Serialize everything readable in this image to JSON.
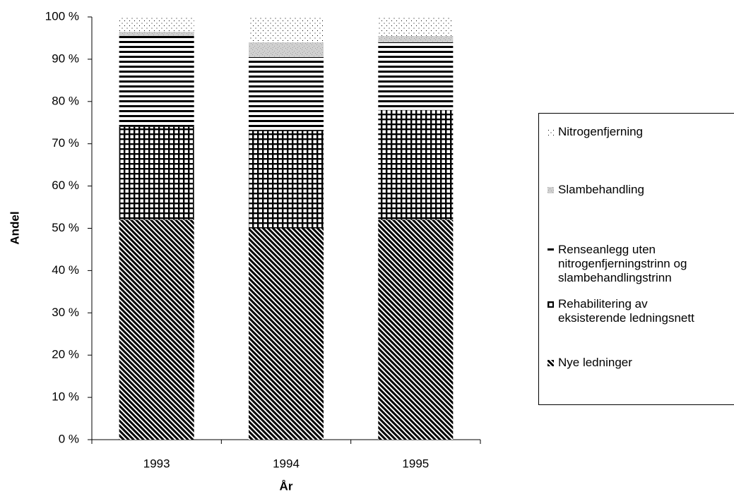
{
  "chart_data": {
    "type": "stacked-bar",
    "x_label": "År",
    "y_label": "Andel",
    "categories": [
      "1993",
      "1994",
      "1995"
    ],
    "series": [
      {
        "name": "Nye ledninger",
        "color": "#000000",
        "pattern": "diagonal",
        "values": [
          52,
          50,
          52
        ]
      },
      {
        "name": "Rehabilitering av eksisterende ledningsnett",
        "color": "#000000",
        "pattern": "grid",
        "values": [
          22,
          23,
          26
        ]
      },
      {
        "name": "Renseanlegg uten nitrogenfjerningstrinn og slambehandlingstrinn",
        "color": "#000000",
        "pattern": "horizontal",
        "values": [
          21.5,
          17.5,
          16
        ]
      },
      {
        "name": "Slambehandling",
        "color": "#a0a0a0",
        "pattern": "fine-dots",
        "values": [
          1,
          3.5,
          1.5
        ]
      },
      {
        "name": "Nitrogenfjerning",
        "color": "#000000",
        "pattern": "sparse-dots",
        "values": [
          3.5,
          6,
          4.5
        ]
      }
    ],
    "ylim": [
      0,
      100
    ],
    "yticks": [
      {
        "value": 0,
        "label": "0 %"
      },
      {
        "value": 10,
        "label": "10 %"
      },
      {
        "value": 20,
        "label": "20 %"
      },
      {
        "value": 30,
        "label": "30 %"
      },
      {
        "value": 40,
        "label": "40 %"
      },
      {
        "value": 50,
        "label": "50 %"
      },
      {
        "value": 60,
        "label": "60 %"
      },
      {
        "value": 70,
        "label": "70 %"
      },
      {
        "value": 80,
        "label": "80 %"
      },
      {
        "value": 90,
        "label": "90 %"
      },
      {
        "value": 100,
        "label": "100 %"
      }
    ],
    "legend": "right"
  }
}
